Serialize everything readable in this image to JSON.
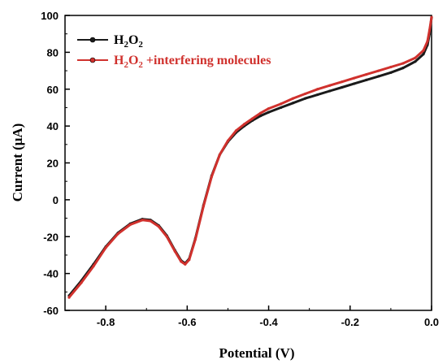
{
  "chart_data": {
    "type": "line",
    "xlabel": "Potential (V)",
    "ylabel": "Current (μA)",
    "xlim": [
      -0.9,
      0.0
    ],
    "ylim": [
      -60,
      100
    ],
    "x_ticks": [
      -0.8,
      -0.6,
      -0.4,
      -0.2,
      0.0
    ],
    "y_ticks": [
      -60,
      -40,
      -20,
      0,
      20,
      40,
      60,
      80,
      100
    ],
    "x_tick_labels": [
      "-0.8",
      "-0.6",
      "-0.4",
      "-0.2",
      "0.0"
    ],
    "y_tick_labels": [
      "-60",
      "-40",
      "-20",
      "0",
      "20",
      "40",
      "60",
      "80",
      "100"
    ],
    "grid": false,
    "legend_position": "top-left",
    "series": [
      {
        "name": "H2O2",
        "legend": {
          "base": "H",
          "sub1": "2",
          "mid": "O",
          "sub2": "2",
          "tail": ""
        },
        "color": "#1a1a1a",
        "x": [
          -0.89,
          -0.86,
          -0.83,
          -0.8,
          -0.77,
          -0.74,
          -0.71,
          -0.69,
          -0.67,
          -0.65,
          -0.63,
          -0.615,
          -0.605,
          -0.595,
          -0.58,
          -0.56,
          -0.54,
          -0.52,
          -0.5,
          -0.48,
          -0.46,
          -0.44,
          -0.42,
          -0.4,
          -0.37,
          -0.34,
          -0.31,
          -0.28,
          -0.25,
          -0.22,
          -0.19,
          -0.16,
          -0.13,
          -0.1,
          -0.07,
          -0.04,
          -0.02,
          -0.01,
          -0.005,
          0.0
        ],
        "y": [
          -52,
          -44,
          -35,
          -25.5,
          -18,
          -13,
          -10.5,
          -11,
          -14,
          -19.5,
          -27.5,
          -33,
          -34.5,
          -32,
          -21,
          -3,
          13,
          24.5,
          31.5,
          36.5,
          40,
          43,
          45.5,
          47.5,
          50,
          52.5,
          55,
          57,
          59,
          61,
          63,
          65,
          67,
          69,
          71.5,
          75,
          79,
          84,
          90,
          99
        ]
      },
      {
        "name": "H2O2 +interfering molecules",
        "legend": {
          "base": "H",
          "sub1": "2",
          "mid": "O",
          "sub2": "2",
          "tail": " +interfering molecules"
        },
        "color": "#d0312d",
        "x": [
          -0.89,
          -0.86,
          -0.83,
          -0.8,
          -0.77,
          -0.74,
          -0.71,
          -0.69,
          -0.67,
          -0.65,
          -0.63,
          -0.615,
          -0.605,
          -0.595,
          -0.58,
          -0.56,
          -0.54,
          -0.52,
          -0.5,
          -0.48,
          -0.46,
          -0.44,
          -0.42,
          -0.4,
          -0.37,
          -0.34,
          -0.31,
          -0.28,
          -0.25,
          -0.22,
          -0.19,
          -0.16,
          -0.13,
          -0.1,
          -0.07,
          -0.04,
          -0.02,
          -0.01,
          -0.005,
          0.0
        ],
        "y": [
          -53,
          -45,
          -36,
          -26,
          -18.5,
          -13.5,
          -11,
          -11.5,
          -14.5,
          -20,
          -28,
          -33.5,
          -35,
          -32.5,
          -21.5,
          -3.5,
          12.5,
          24.5,
          32,
          37.5,
          41,
          44,
          47,
          49.5,
          52,
          55,
          57.5,
          60,
          62,
          64,
          66,
          68,
          70,
          72,
          74,
          77,
          81,
          86,
          92,
          99
        ]
      }
    ]
  }
}
